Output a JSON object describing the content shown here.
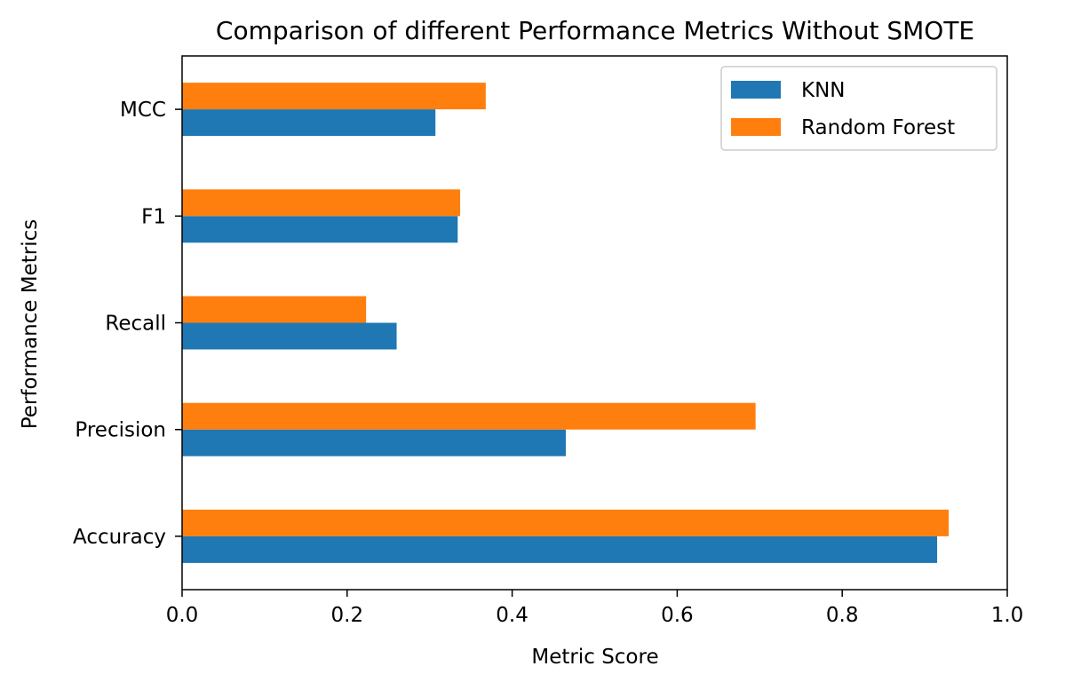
{
  "chart_data": {
    "type": "bar",
    "orientation": "horizontal",
    "title": "Comparison of different Performance Metrics Without SMOTE",
    "xlabel": "Metric Score",
    "ylabel": "Performance Metrics",
    "categories": [
      "Accuracy",
      "Precision",
      "Recall",
      "F1",
      "MCC"
    ],
    "series": [
      {
        "name": "KNN",
        "color": "#1f77b4",
        "values": [
          0.915,
          0.465,
          0.26,
          0.334,
          0.307
        ]
      },
      {
        "name": "Random Forest",
        "color": "#ff7f0e",
        "values": [
          0.929,
          0.695,
          0.223,
          0.337,
          0.368
        ]
      }
    ],
    "xlim": [
      0.0,
      1.0
    ],
    "xticks": [
      0.0,
      0.2,
      0.4,
      0.6,
      0.8,
      1.0
    ],
    "xtick_labels": [
      "0.0",
      "0.2",
      "0.4",
      "0.6",
      "0.8",
      "1.0"
    ],
    "grid": false,
    "legend": "top-right"
  }
}
